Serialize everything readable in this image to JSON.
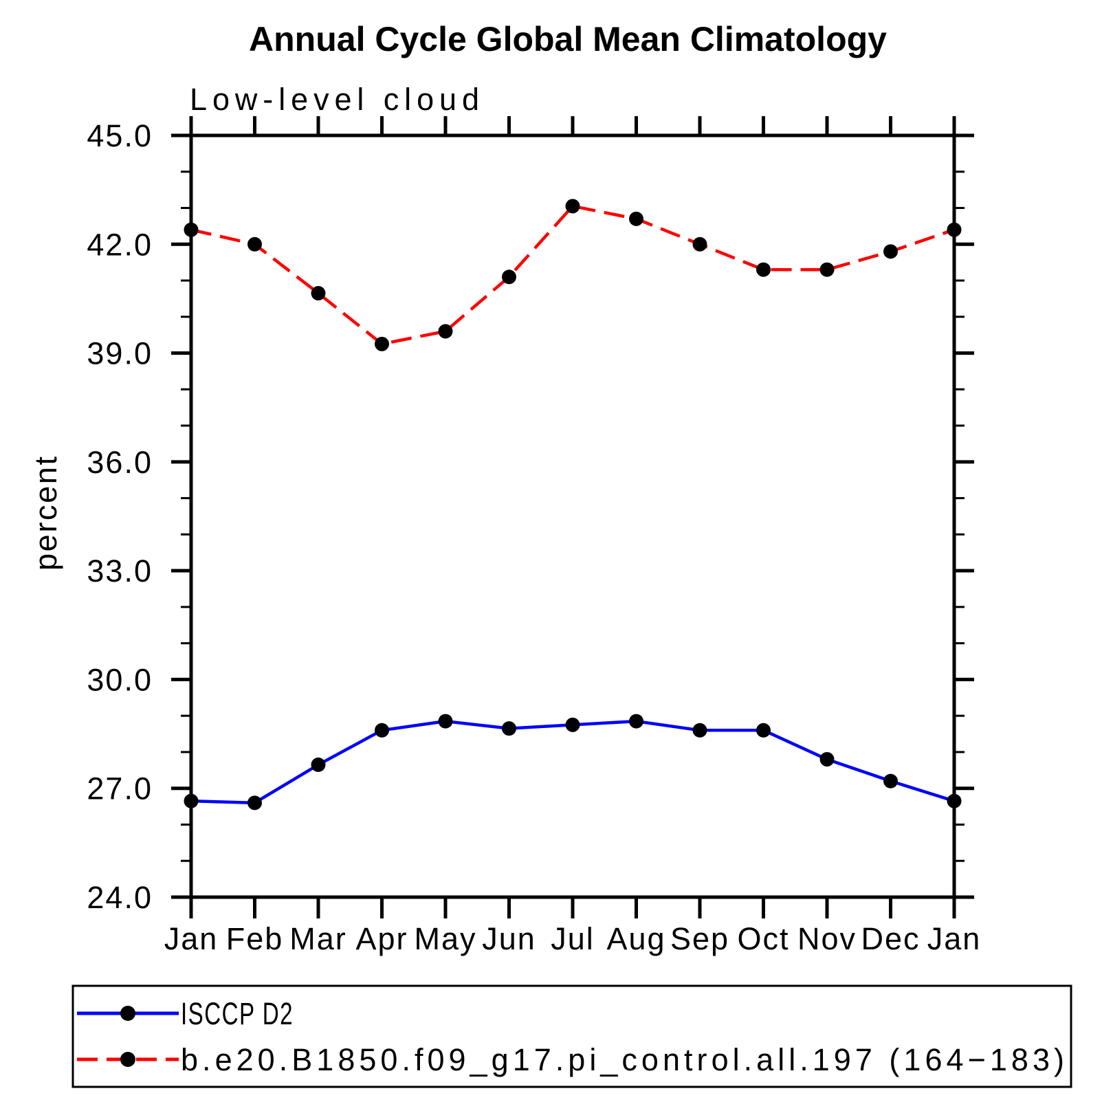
{
  "chart_data": {
    "type": "line",
    "title": "Annual Cycle Global Mean Climatology",
    "subtitle": "Low-level cloud",
    "ylabel": "percent",
    "categories": [
      "Jan",
      "Feb",
      "Mar",
      "Apr",
      "May",
      "Jun",
      "Jul",
      "Aug",
      "Sep",
      "Oct",
      "Nov",
      "Dec",
      "Jan"
    ],
    "ylim": [
      24.0,
      45.0
    ],
    "ytick_major_values": [
      24,
      27,
      30,
      33,
      36,
      39,
      42,
      45
    ],
    "ytick_major_labels": [
      "24.0",
      "27.0",
      "30.0",
      "33.0",
      "36.0",
      "39.0",
      "42.0",
      "45.0"
    ],
    "ytick_minor_step": 1,
    "grid": false,
    "legend_position": "bottom-left-box",
    "series": [
      {
        "name": "ISCCP D2",
        "color": "#0000ff",
        "line_style": "solid",
        "marker": "filled-circle",
        "marker_color": "#000000",
        "values": [
          26.65,
          26.6,
          27.65,
          28.6,
          28.85,
          28.65,
          28.75,
          28.85,
          28.6,
          28.6,
          27.8,
          27.2,
          26.65
        ]
      },
      {
        "name": "b.e20.B1850.f09_g17.pi_control.all.197 (164−183)",
        "color": "#ff0000",
        "line_style": "dashed",
        "marker": "filled-circle",
        "marker_color": "#000000",
        "values": [
          42.4,
          42.0,
          40.65,
          39.25,
          39.6,
          41.1,
          43.05,
          42.7,
          42.0,
          41.3,
          41.3,
          41.8,
          42.4
        ]
      }
    ]
  }
}
